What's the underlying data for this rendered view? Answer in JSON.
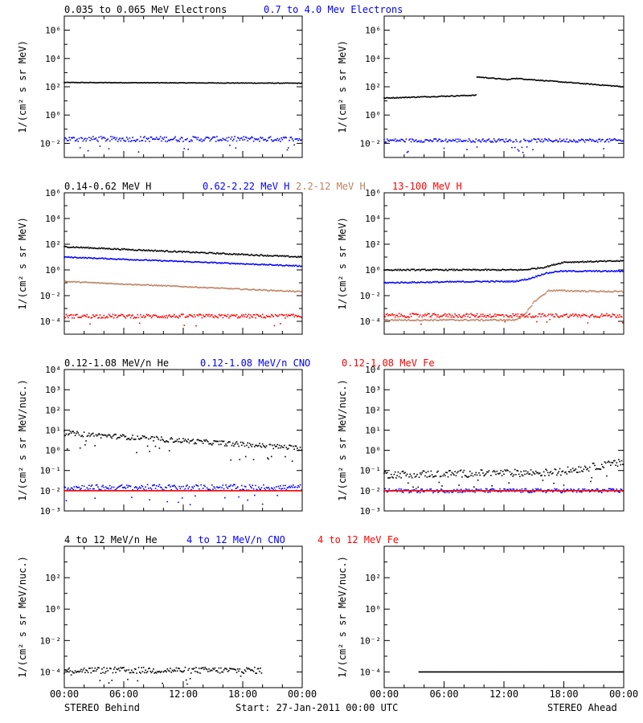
{
  "footer": {
    "left": "STEREO Behind",
    "center": "Start: 27-Jan-2011 00:00 UTC",
    "right": "STEREO Ahead"
  },
  "x_ticks": [
    "00:00",
    "06:00",
    "12:00",
    "18:00",
    "00:00"
  ],
  "chart_data": [
    {
      "type": "scatter",
      "row": 1,
      "ylabel": "1/(cm² s sr MeV)",
      "ylog_range": [
        -3,
        7
      ],
      "ytick_exps": [
        -2,
        0,
        2,
        4,
        6
      ],
      "titles": [
        {
          "text": "0.035 to 0.065 MeV Electrons",
          "color": "#000000"
        },
        {
          "text": "0.7 to 4.0 Mev Electrons",
          "color": "#0000ff"
        }
      ],
      "behind": [
        {
          "name": "0.035 to 0.065 MeV Electrons",
          "color": "#000000",
          "x": [
            0,
            24
          ],
          "log10_y": [
            2.3,
            2.25
          ],
          "noise": 0.02
        },
        {
          "name": "0.7 to 4.0 Mev Electrons",
          "color": "#0000ff",
          "x": [
            0,
            24
          ],
          "log10_y": [
            -1.7,
            -1.7
          ],
          "noise": 0.18
        }
      ],
      "ahead": [
        {
          "name": "0.035 to 0.065 MeV Electrons",
          "color": "#000000",
          "x": [
            0,
            9.2,
            9.25,
            12.5,
            13,
            24
          ],
          "log10_y": [
            1.2,
            1.4,
            2.7,
            2.5,
            2.6,
            2.0
          ],
          "noise": 0.03
        },
        {
          "name": "0.7 to 4.0 Mev Electrons",
          "color": "#0000ff",
          "x": [
            0,
            24
          ],
          "log10_y": [
            -1.8,
            -1.8
          ],
          "noise": 0.12
        }
      ]
    },
    {
      "type": "scatter",
      "row": 2,
      "ylabel": "1/(cm² s sr MeV)",
      "ylog_range": [
        -5,
        6
      ],
      "ytick_exps": [
        -4,
        -2,
        0,
        2,
        4,
        6
      ],
      "titles": [
        {
          "text": "0.14-0.62 MeV H",
          "color": "#000000"
        },
        {
          "text": "0.62-2.22 MeV H",
          "color": "#0000ff"
        },
        {
          "text": "2.2-12 MeV H",
          "color": "#c08060"
        },
        {
          "text": "13-100 MeV H",
          "color": "#ff0000"
        }
      ],
      "behind": [
        {
          "name": "0.14-0.62 MeV H",
          "color": "#000000",
          "x": [
            0,
            24
          ],
          "log10_y": [
            1.8,
            1.0
          ],
          "noise": 0.05
        },
        {
          "name": "0.62-2.22 MeV H",
          "color": "#0000ff",
          "x": [
            0,
            24
          ],
          "log10_y": [
            1.0,
            0.3
          ],
          "noise": 0.04
        },
        {
          "name": "2.2-12 MeV H",
          "color": "#c08060",
          "x": [
            0,
            24
          ],
          "log10_y": [
            -0.9,
            -1.7
          ],
          "noise": 0.04
        },
        {
          "name": "13-100 MeV H",
          "color": "#ff0000",
          "x": [
            0,
            24
          ],
          "log10_y": [
            -3.6,
            -3.6
          ],
          "noise": 0.15
        }
      ],
      "ahead": [
        {
          "name": "0.14-0.62 MeV H",
          "color": "#000000",
          "x": [
            0,
            14,
            16,
            18,
            24
          ],
          "log10_y": [
            0.0,
            0.0,
            0.2,
            0.6,
            0.7
          ],
          "noise": 0.05
        },
        {
          "name": "0.62-2.22 MeV H",
          "color": "#0000ff",
          "x": [
            0,
            10,
            13,
            14.5,
            16,
            17.5,
            24
          ],
          "log10_y": [
            -1.0,
            -0.9,
            -0.9,
            -0.7,
            -0.3,
            -0.1,
            -0.1
          ],
          "noise": 0.05
        },
        {
          "name": "2.2-12 MeV H",
          "color": "#c08060",
          "x": [
            0,
            13,
            14,
            15,
            16.5,
            24
          ],
          "log10_y": [
            -3.9,
            -3.9,
            -3.6,
            -2.5,
            -1.6,
            -1.7
          ],
          "noise": 0.06
        },
        {
          "name": "13-100 MeV H",
          "color": "#ff0000",
          "x": [
            0,
            24
          ],
          "log10_y": [
            -3.55,
            -3.55
          ],
          "noise": 0.15
        }
      ]
    },
    {
      "type": "scatter",
      "row": 3,
      "ylabel": "1/(cm² s sr MeV/nuc.)",
      "ylog_range": [
        -3,
        4
      ],
      "ytick_exps": [
        -3,
        -2,
        -1,
        0,
        1,
        2,
        3,
        4
      ],
      "titles": [
        {
          "text": "0.12-1.08 MeV/n He",
          "color": "#000000"
        },
        {
          "text": "0.12-1.08 MeV/n CNO",
          "color": "#0000ff"
        },
        {
          "text": "0.12-1.08 MeV Fe",
          "color": "#ff0000"
        }
      ],
      "behind": [
        {
          "name": "0.12-1.08 MeV/n He",
          "color": "#000000",
          "x": [
            0,
            24
          ],
          "log10_y": [
            0.85,
            0.1
          ],
          "noise": 0.12
        },
        {
          "name": "0.12-1.08 MeV/n CNO",
          "color": "#0000ff",
          "x": [
            0,
            24
          ],
          "log10_y": [
            -1.85,
            -1.85
          ],
          "noise": 0.15
        },
        {
          "name": "0.12-1.08 MeV Fe",
          "color": "#ff0000",
          "x": [
            0,
            24
          ],
          "log10_y": [
            -2.0,
            -2.0
          ],
          "noise": 0.0
        }
      ],
      "ahead": [
        {
          "name": "0.12-1.08 MeV/n He",
          "color": "#000000",
          "x": [
            0,
            17,
            24
          ],
          "log10_y": [
            -1.2,
            -1.1,
            -0.6
          ],
          "noise": 0.18
        },
        {
          "name": "0.12-1.08 MeV/n CNO",
          "color": "#0000ff",
          "x": [
            0,
            24
          ],
          "log10_y": [
            -2.0,
            -2.0
          ],
          "noise": 0.1
        },
        {
          "name": "0.12-1.08 MeV Fe",
          "color": "#ff0000",
          "x": [
            0,
            24
          ],
          "log10_y": [
            -2.0,
            -2.0
          ],
          "noise": 0.0
        }
      ]
    },
    {
      "type": "scatter",
      "row": 4,
      "ylabel": "1/(cm² s sr MeV/nuc.)",
      "ylog_range": [
        -5,
        4
      ],
      "ytick_exps": [
        -4,
        -2,
        0,
        2
      ],
      "titles": [
        {
          "text": "4 to 12 MeV/n He",
          "color": "#000000"
        },
        {
          "text": "4 to 12 MeV/n CNO",
          "color": "#0000ff"
        },
        {
          "text": "4 to 12 MeV Fe",
          "color": "#ff0000"
        }
      ],
      "behind": [
        {
          "name": "4 to 12 MeV/n He",
          "color": "#000000",
          "x": [
            0,
            20
          ],
          "log10_y": [
            -3.9,
            -3.9
          ],
          "noise": 0.2
        }
      ],
      "ahead": [
        {
          "name": "4 to 12 MeV/n He",
          "color": "#000000",
          "x": [
            3.5,
            24
          ],
          "log10_y": [
            -4.0,
            -4.0
          ],
          "noise": 0.0
        }
      ]
    }
  ]
}
